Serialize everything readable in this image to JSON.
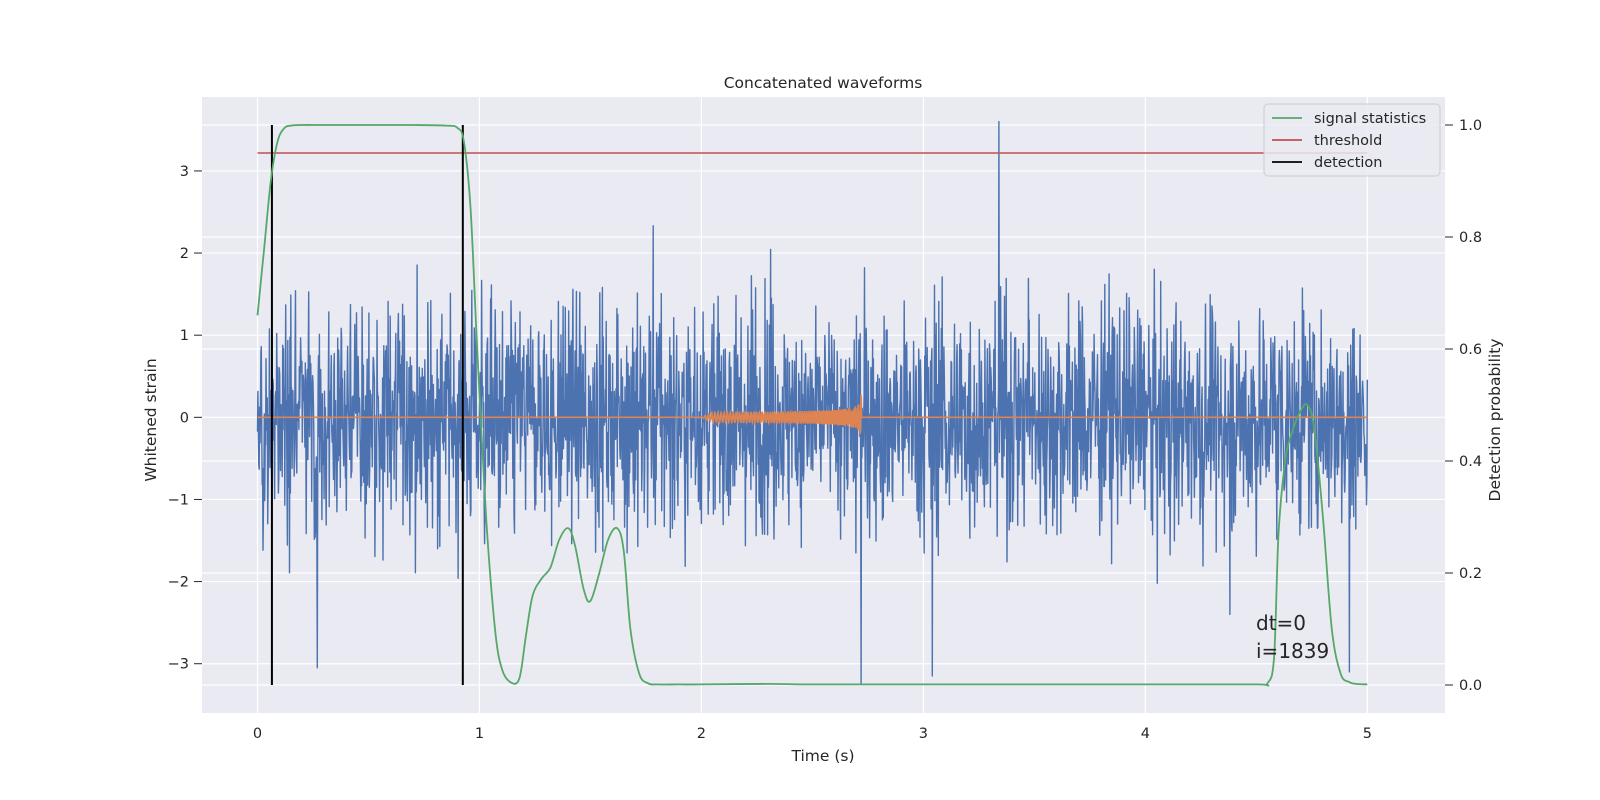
{
  "chart_data": {
    "type": "line",
    "title": "Concatenated waveforms",
    "xlabel": "Time (s)",
    "ylabel": "Whitened strain",
    "y2label": "Detection probability",
    "xlim": [
      -0.25,
      5.35
    ],
    "ylim": [
      -3.6,
      3.9
    ],
    "y2lim": [
      -0.05,
      1.05
    ],
    "xticks": [
      0,
      1,
      2,
      3,
      4,
      5
    ],
    "yticks": [
      -3,
      -2,
      -1,
      0,
      1,
      2,
      3
    ],
    "y2ticks": [
      0.0,
      0.2,
      0.4,
      0.6,
      0.8,
      1.0
    ],
    "xtick_labels": [
      "0",
      "1",
      "2",
      "3",
      "4",
      "5"
    ],
    "ytick_labels": [
      "−3",
      "−2",
      "−1",
      "0",
      "1",
      "2",
      "3"
    ],
    "y2tick_labels": [
      "0.0",
      "0.2",
      "0.4",
      "0.6",
      "0.8",
      "1.0"
    ],
    "grid": true,
    "legend_position": "top-right",
    "legend": [
      {
        "label": "signal statistics",
        "color": "#55a868"
      },
      {
        "label": "threshold",
        "color": "#c44e52"
      },
      {
        "label": "detection",
        "color": "#000000"
      }
    ],
    "series": [
      {
        "axis": "left",
        "color": "#4c72b0",
        "description": "noisy whitened strain",
        "time_range": [
          0,
          5
        ],
        "envelope": [
          -2.6,
          2.4
        ],
        "extremes": [
          [
            3.34,
            3.6
          ],
          [
            2.72,
            -3.25
          ],
          [
            3.04,
            -3.15
          ],
          [
            0.27,
            -3.05
          ],
          [
            4.92,
            -3.1
          ]
        ]
      },
      {
        "axis": "left",
        "color": "#dd8452",
        "description": "injected chirp",
        "time_range": [
          2.0,
          2.72
        ],
        "peak_amplitude": 1.0
      },
      {
        "name": "signal statistics",
        "axis": "right",
        "color": "#55a868",
        "x": [
          0.0,
          0.03,
          0.06,
          0.09,
          0.12,
          0.15,
          0.2,
          0.3,
          0.5,
          0.7,
          0.85,
          0.9,
          0.93,
          0.96,
          0.99,
          1.03,
          1.07,
          1.1,
          1.14,
          1.18,
          1.21,
          1.24,
          1.28,
          1.32,
          1.36,
          1.4,
          1.43,
          1.47,
          1.5,
          1.54,
          1.58,
          1.62,
          1.65,
          1.68,
          1.72,
          1.76,
          1.8,
          1.9,
          2.0,
          2.3,
          2.5,
          3.0,
          4.0,
          4.5,
          4.55,
          4.58,
          4.6,
          4.63,
          4.66,
          4.7,
          4.73,
          4.76,
          4.8,
          4.84,
          4.88,
          4.92,
          4.95,
          5.0
        ],
        "y": [
          0.66,
          0.78,
          0.9,
          0.97,
          0.994,
          0.999,
          1.0,
          1.0,
          1.0,
          1.0,
          0.999,
          0.995,
          0.97,
          0.85,
          0.6,
          0.3,
          0.1,
          0.03,
          0.005,
          0.012,
          0.09,
          0.16,
          0.19,
          0.21,
          0.26,
          0.28,
          0.25,
          0.17,
          0.15,
          0.2,
          0.26,
          0.28,
          0.24,
          0.1,
          0.02,
          0.003,
          0.001,
          0.001,
          0.001,
          0.002,
          0.001,
          0.001,
          0.001,
          0.001,
          0.003,
          0.05,
          0.27,
          0.4,
          0.45,
          0.49,
          0.5,
          0.46,
          0.3,
          0.1,
          0.02,
          0.005,
          0.002,
          0.001
        ]
      },
      {
        "name": "threshold",
        "axis": "right",
        "color": "#c44e52",
        "x": [
          0,
          5
        ],
        "y": [
          0.95,
          0.95
        ]
      },
      {
        "name": "detection",
        "axis": "right",
        "color": "#000000",
        "type": "vlines",
        "x": [
          0.065,
          0.925
        ],
        "y_range": [
          0.0,
          1.0
        ]
      }
    ],
    "annotations": [
      "dt=0",
      "i=1839"
    ]
  }
}
